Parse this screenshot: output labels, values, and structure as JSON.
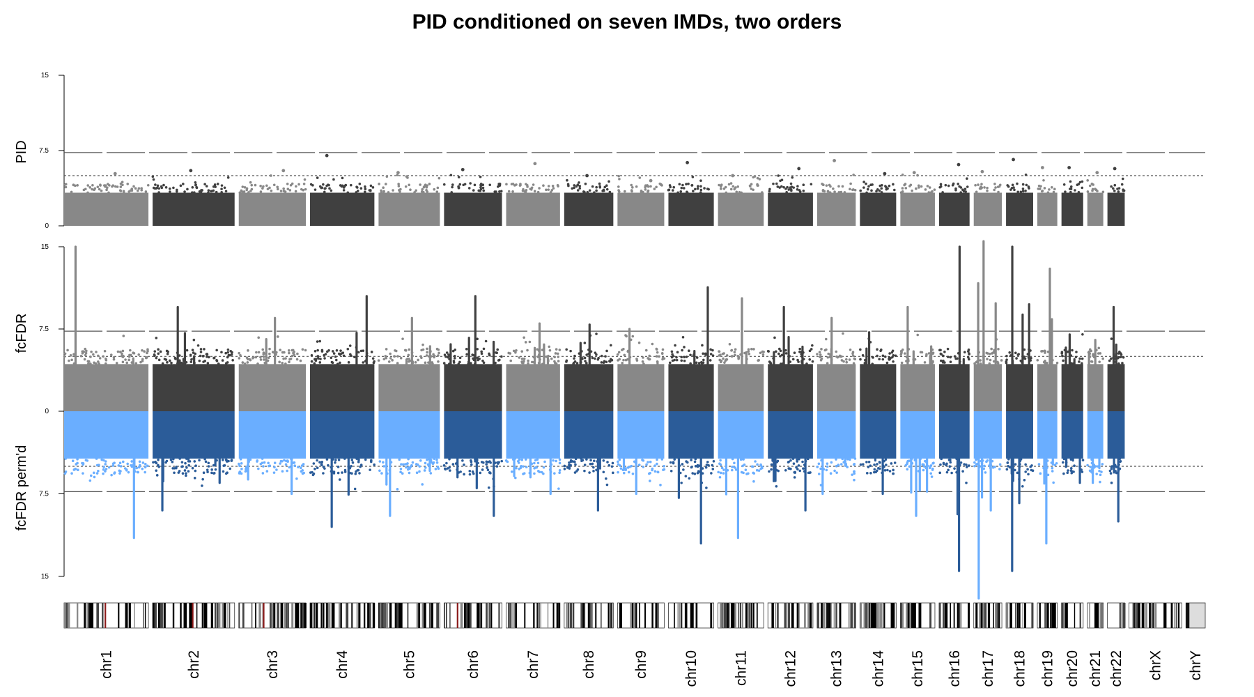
{
  "chart_data": {
    "type": "scatter",
    "subtype": "miami-manhattan",
    "title": "PID conditioned on seven IMDs, two orders",
    "panels": [
      {
        "name": "PID",
        "ylabel": "PID",
        "ylim": [
          0,
          15
        ],
        "ticks": [
          "0",
          "7.5",
          "15"
        ],
        "tick_values": [
          0,
          7.5,
          15
        ],
        "thresholds": [
          {
            "value": 7.3,
            "style": "dashed"
          },
          {
            "value": 5,
            "style": "dotted"
          }
        ]
      },
      {
        "name": "fcFDR",
        "ylabel": "fcFDR",
        "ylim": [
          0,
          15
        ],
        "ticks": [
          "0",
          "7.5",
          "15"
        ],
        "tick_values": [
          0,
          7.5,
          15
        ],
        "thresholds": [
          {
            "value": 7.3,
            "style": "dashed"
          },
          {
            "value": 5,
            "style": "dotted"
          }
        ]
      },
      {
        "name": "fcFDR perm'd",
        "ylabel": "fcFDR perm'd",
        "ylim": [
          0,
          15
        ],
        "inverted": true,
        "ticks": [
          "7.5",
          "15"
        ],
        "tick_values": [
          7.5,
          15
        ],
        "thresholds": [
          {
            "value": 5,
            "style": "dotted"
          },
          {
            "value": 7.3,
            "style": "dashed"
          }
        ]
      }
    ],
    "chromosomes": [
      "chr1",
      "chr2",
      "chr3",
      "chr4",
      "chr5",
      "chr6",
      "chr7",
      "chr8",
      "chr9",
      "chr10",
      "chr11",
      "chr12",
      "chr13",
      "chr14",
      "chr15",
      "chr16",
      "chr17",
      "chr18",
      "chr19",
      "chr20",
      "chr21",
      "chr22",
      "chrX",
      "chrY"
    ],
    "chromosome_lengths_mb": [
      249,
      242,
      198,
      190,
      181,
      171,
      159,
      145,
      138,
      134,
      135,
      133,
      114,
      107,
      102,
      90,
      83,
      80,
      59,
      64,
      47,
      51,
      156,
      57
    ],
    "chromosome_has_data": [
      true,
      true,
      true,
      true,
      true,
      true,
      true,
      true,
      true,
      true,
      true,
      true,
      true,
      true,
      true,
      true,
      true,
      true,
      true,
      true,
      true,
      true,
      false,
      false
    ],
    "series_colors": {
      "upper_light": "#888888",
      "upper_dark": "#404040",
      "lower_light": "#6aaeff",
      "lower_dark": "#2b5c99"
    },
    "pid_peak_values": [
      5.2,
      5.5,
      5.5,
      7.0,
      5.3,
      5.6,
      6.2,
      5.0,
      4.5,
      6.3,
      5.0,
      5.7,
      6.5,
      5.2,
      5.3,
      6.1,
      5.4,
      6.6,
      5.8,
      5.8,
      5.3,
      5.7
    ],
    "fcfdr_peak_values": [
      15.0,
      9.5,
      8.5,
      10.5,
      8.5,
      10.5,
      8.0,
      7.9,
      7.5,
      11.3,
      10.3,
      9.5,
      8.5,
      7.2,
      9.5,
      15.0,
      17.0,
      15.0,
      13.0,
      7.0,
      6.5,
      9.5
    ],
    "fcfdr_permd_peak_values": [
      11.5,
      9.0,
      7.5,
      10.5,
      9.5,
      9.5,
      7.5,
      9.0,
      7.5,
      12.0,
      11.5,
      9.0,
      7.5,
      7.5,
      9.5,
      14.5,
      17.0,
      14.5,
      12.0,
      6.5,
      6.5,
      10.0
    ]
  }
}
